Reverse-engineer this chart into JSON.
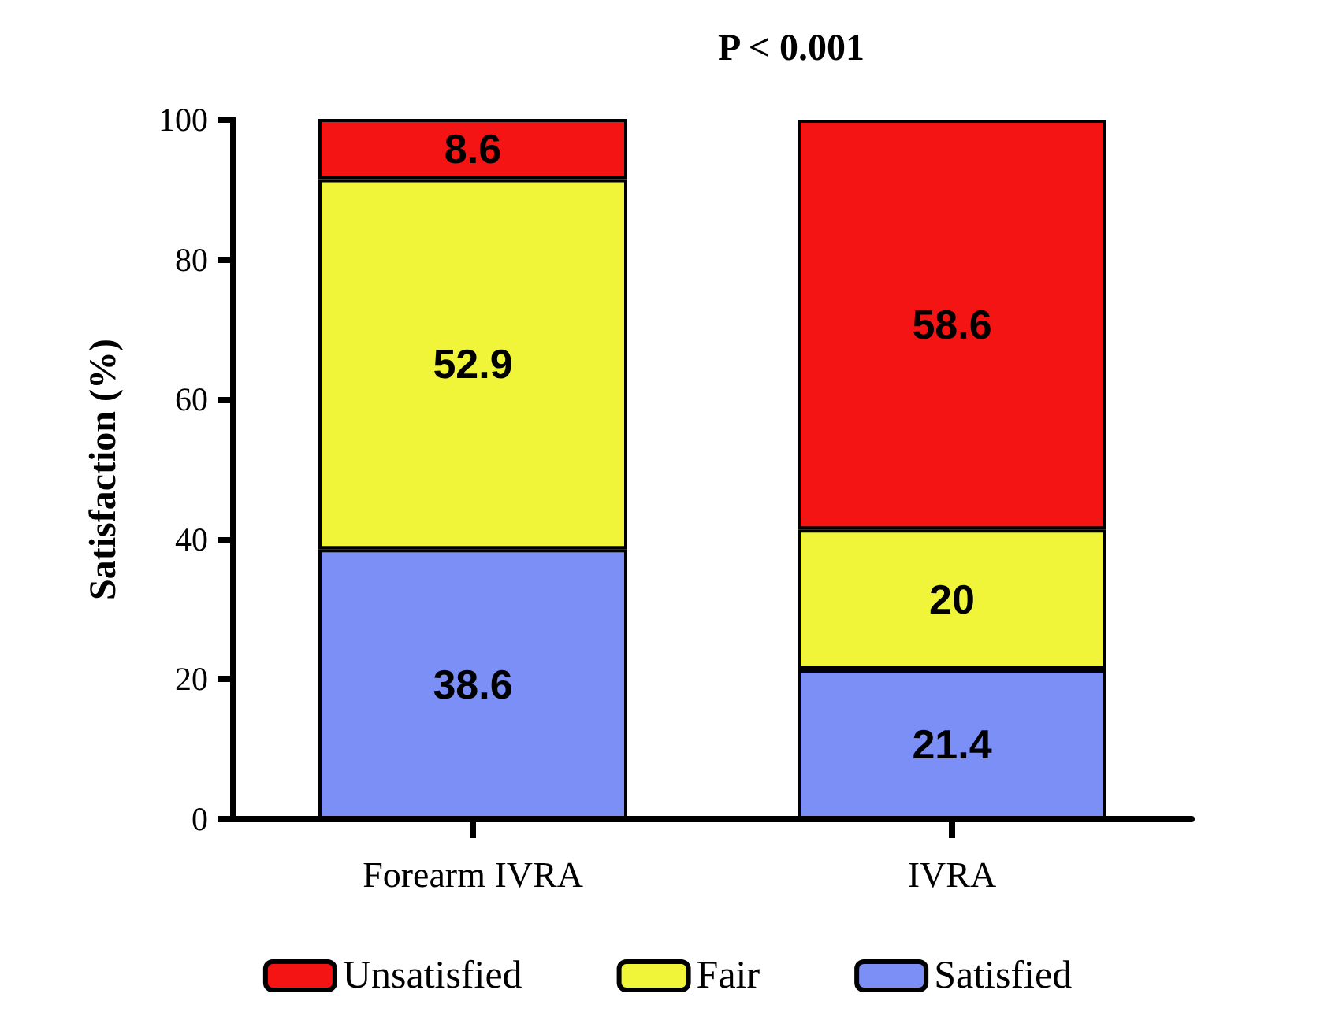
{
  "chart_data": {
    "type": "bar",
    "title": "P < 0.001",
    "ylabel": "Satisfaction (%)",
    "categories": [
      "Forearm IVRA",
      "IVRA"
    ],
    "stacked": true,
    "data_labels": true,
    "legend": "bottom",
    "grid": false,
    "ylim": [
      0,
      100
    ],
    "yticks": [
      0,
      20,
      40,
      60,
      80,
      100
    ],
    "series": [
      {
        "name": "Satisfied",
        "color": "#7b8ff7",
        "values": [
          38.6,
          21.4
        ]
      },
      {
        "name": "Fair",
        "color": "#f0f53a",
        "values": [
          52.9,
          20
        ]
      },
      {
        "name": "Unsatisfied",
        "color": "#f51414",
        "values": [
          8.6,
          58.6
        ]
      }
    ]
  }
}
